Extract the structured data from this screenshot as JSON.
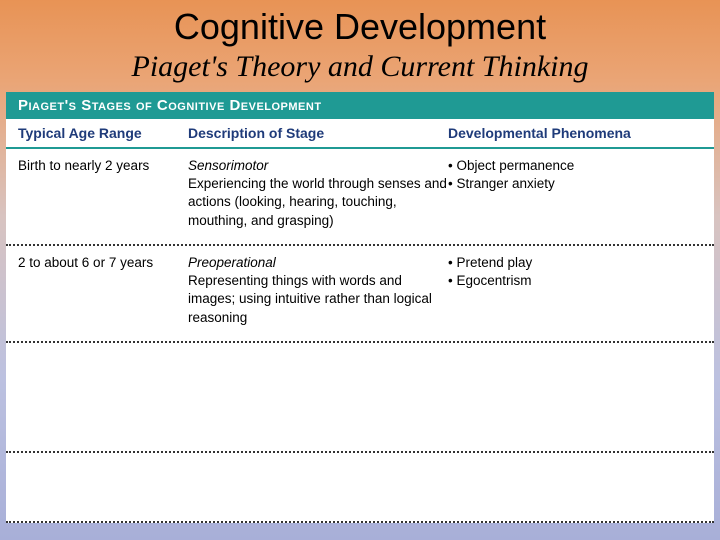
{
  "header": {
    "title": "Cognitive Development",
    "subtitle": "Piaget's Theory and Current Thinking"
  },
  "table": {
    "caption": "Piaget's Stages of Cognitive Development",
    "columns": {
      "c1": "Typical Age Range",
      "c2": "Description of Stage",
      "c3": "Developmental Phenomena"
    },
    "rows": [
      {
        "age": "Birth to nearly 2 years",
        "stage": "Sensorimotor",
        "desc": "Experiencing the world through senses and actions (looking, hearing, touching, mouthing, and grasping)",
        "phen1": "Object permanence",
        "phen2": "Stranger anxiety"
      },
      {
        "age": "2 to about 6 or 7 years",
        "stage": "Preoperational",
        "desc": "Representing things with words and images; using intuitive rather than logical reasoning",
        "phen1": "Pretend play",
        "phen2": "Egocentrism"
      }
    ]
  },
  "colors": {
    "teal": "#1f9a94",
    "header_text": "#1f3b7a",
    "bg_top": "#e89355",
    "bg_bottom": "#a8afd8"
  }
}
